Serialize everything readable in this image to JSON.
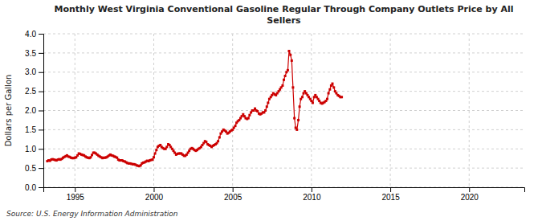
{
  "chart_data": {
    "type": "line",
    "title": "Monthly West Virginia Conventional Gasoline Regular Through Company Outlets Price by All\nSellers",
    "ylabel": "Dollars per Gallon",
    "annotations": [
      "Source: U.S. Energy Information Administration"
    ],
    "color": "#cc0000",
    "marker": "square",
    "line_style": "solid",
    "grid": true,
    "xlim": [
      1993.0,
      2023.5
    ],
    "ylim": [
      0.0,
      4.0
    ],
    "xticks": [
      1995,
      2000,
      2005,
      2010,
      2015,
      2020
    ],
    "yticks": [
      {
        "value": 0.0,
        "label": "0.0"
      },
      0.5,
      {
        "value": 1.0,
        "label": "1.0"
      },
      1.5,
      {
        "value": 2.0,
        "label": "2.0"
      },
      2.5,
      {
        "value": 3.0,
        "label": "3.0"
      },
      3.5,
      {
        "value": 4.0,
        "label": "4.0"
      }
    ],
    "x": [
      1993.25,
      1993.33,
      1993.42,
      1993.5,
      1993.58,
      1993.67,
      1993.75,
      1993.83,
      1993.92,
      1994.0,
      1994.08,
      1994.17,
      1994.25,
      1994.33,
      1994.42,
      1994.5,
      1994.58,
      1994.67,
      1994.75,
      1994.83,
      1994.92,
      1995.0,
      1995.08,
      1995.17,
      1995.25,
      1995.33,
      1995.42,
      1995.5,
      1995.58,
      1995.67,
      1995.75,
      1995.83,
      1995.92,
      1996.0,
      1996.08,
      1996.17,
      1996.25,
      1996.33,
      1996.42,
      1996.5,
      1996.58,
      1996.67,
      1996.75,
      1996.83,
      1996.92,
      1997.0,
      1997.08,
      1997.17,
      1997.25,
      1997.33,
      1997.42,
      1997.5,
      1997.58,
      1997.67,
      1997.75,
      1997.83,
      1997.92,
      1998.0,
      1998.08,
      1998.17,
      1998.25,
      1998.33,
      1998.42,
      1998.5,
      1998.58,
      1998.67,
      1998.75,
      1998.83,
      1998.92,
      1999.0,
      1999.08,
      1999.17,
      1999.25,
      1999.33,
      1999.42,
      1999.5,
      1999.58,
      1999.67,
      1999.75,
      1999.83,
      1999.92,
      2000.0,
      2000.08,
      2000.17,
      2000.25,
      2000.33,
      2000.42,
      2000.5,
      2000.58,
      2000.67,
      2000.75,
      2000.83,
      2000.92,
      2001.0,
      2001.08,
      2001.17,
      2001.25,
      2001.33,
      2001.42,
      2001.5,
      2001.58,
      2001.67,
      2001.75,
      2001.83,
      2001.92,
      2002.0,
      2002.08,
      2002.17,
      2002.25,
      2002.33,
      2002.42,
      2002.5,
      2002.58,
      2002.67,
      2002.75,
      2002.83,
      2002.92,
      2003.0,
      2003.08,
      2003.17,
      2003.25,
      2003.33,
      2003.42,
      2003.5,
      2003.58,
      2003.67,
      2003.75,
      2003.83,
      2003.92,
      2004.0,
      2004.08,
      2004.17,
      2004.25,
      2004.33,
      2004.42,
      2004.5,
      2004.58,
      2004.67,
      2004.75,
      2004.83,
      2004.92,
      2005.0,
      2005.08,
      2005.17,
      2005.25,
      2005.33,
      2005.42,
      2005.5,
      2005.58,
      2005.67,
      2005.75,
      2005.83,
      2005.92,
      2006.0,
      2006.08,
      2006.17,
      2006.25,
      2006.33,
      2006.42,
      2006.5,
      2006.58,
      2006.67,
      2006.75,
      2006.83,
      2006.92,
      2007.0,
      2007.08,
      2007.17,
      2007.25,
      2007.33,
      2007.42,
      2007.5,
      2007.58,
      2007.67,
      2007.75,
      2007.83,
      2007.92,
      2008.0,
      2008.08,
      2008.17,
      2008.25,
      2008.33,
      2008.42,
      2008.5,
      2008.58,
      2008.67,
      2008.75,
      2008.83,
      2008.92,
      2009.0,
      2009.08,
      2009.17,
      2009.25,
      2009.33,
      2009.42,
      2009.5,
      2009.58,
      2009.67,
      2009.75,
      2009.83,
      2009.92,
      2010.0,
      2010.08,
      2010.17,
      2010.25,
      2010.33,
      2010.42,
      2010.5,
      2010.58,
      2010.67,
      2010.75,
      2010.83,
      2010.92,
      2011.0,
      2011.08,
      2011.17,
      2011.25,
      2011.33,
      2011.42,
      2011.5,
      2011.58,
      2011.67,
      2011.75,
      2011.83,
      2011.92
    ],
    "values": [
      0.68,
      0.7,
      0.69,
      0.72,
      0.73,
      0.72,
      0.71,
      0.7,
      0.72,
      0.73,
      0.72,
      0.74,
      0.77,
      0.79,
      0.81,
      0.83,
      0.8,
      0.79,
      0.77,
      0.76,
      0.76,
      0.77,
      0.78,
      0.83,
      0.88,
      0.87,
      0.85,
      0.84,
      0.83,
      0.8,
      0.78,
      0.77,
      0.76,
      0.78,
      0.84,
      0.9,
      0.9,
      0.88,
      0.85,
      0.82,
      0.8,
      0.78,
      0.76,
      0.77,
      0.77,
      0.78,
      0.8,
      0.83,
      0.85,
      0.83,
      0.82,
      0.8,
      0.79,
      0.77,
      0.72,
      0.7,
      0.7,
      0.7,
      0.68,
      0.67,
      0.65,
      0.63,
      0.62,
      0.62,
      0.61,
      0.6,
      0.6,
      0.59,
      0.57,
      0.56,
      0.55,
      0.57,
      0.62,
      0.64,
      0.65,
      0.67,
      0.69,
      0.68,
      0.7,
      0.71,
      0.72,
      0.78,
      0.88,
      0.97,
      1.05,
      1.08,
      1.1,
      1.05,
      1.02,
      1.0,
      1.0,
      1.05,
      1.12,
      1.1,
      1.05,
      1.0,
      0.95,
      0.9,
      0.85,
      0.87,
      0.88,
      0.88,
      0.88,
      0.85,
      0.82,
      0.82,
      0.85,
      0.9,
      0.95,
      1.0,
      1.02,
      1.0,
      0.97,
      0.95,
      0.97,
      1.0,
      1.02,
      1.05,
      1.1,
      1.15,
      1.2,
      1.18,
      1.12,
      1.1,
      1.08,
      1.05,
      1.08,
      1.1,
      1.12,
      1.15,
      1.2,
      1.3,
      1.4,
      1.45,
      1.5,
      1.48,
      1.45,
      1.4,
      1.42,
      1.45,
      1.48,
      1.5,
      1.55,
      1.6,
      1.68,
      1.72,
      1.75,
      1.8,
      1.85,
      1.9,
      1.85,
      1.8,
      1.78,
      1.8,
      1.88,
      1.95,
      2.0,
      2.0,
      2.05,
      2.0,
      1.98,
      1.92,
      1.9,
      1.92,
      1.95,
      1.95,
      2.0,
      2.1,
      2.2,
      2.3,
      2.35,
      2.4,
      2.45,
      2.42,
      2.4,
      2.45,
      2.5,
      2.55,
      2.6,
      2.65,
      2.8,
      2.9,
      3.0,
      3.05,
      3.55,
      3.45,
      3.3,
      2.6,
      1.8,
      1.55,
      1.5,
      1.75,
      2.1,
      2.3,
      2.35,
      2.45,
      2.5,
      2.45,
      2.4,
      2.35,
      2.3,
      2.25,
      2.2,
      2.35,
      2.4,
      2.35,
      2.3,
      2.25,
      2.2,
      2.18,
      2.2,
      2.22,
      2.25,
      2.3,
      2.45,
      2.55,
      2.65,
      2.7,
      2.6,
      2.5,
      2.45,
      2.4,
      2.38,
      2.35,
      2.35
    ]
  }
}
